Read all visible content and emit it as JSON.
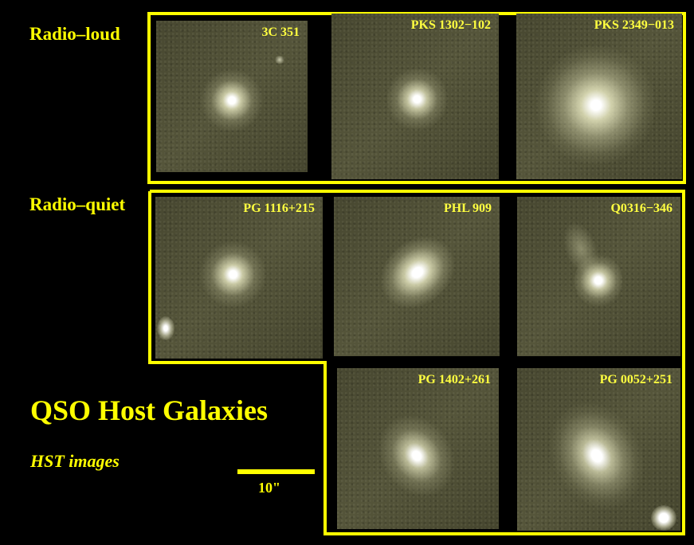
{
  "groups": {
    "radio_loud": "Radio–loud",
    "radio_quiet": "Radio–quiet"
  },
  "title": "QSO Host Galaxies",
  "subtitle": "HST images",
  "scale_bar_label": "10\"",
  "panels": [
    {
      "label": "3C 351"
    },
    {
      "label": "PKS 1302−102"
    },
    {
      "label": "PKS 2349−013"
    },
    {
      "label": "PG 1116+215"
    },
    {
      "label": "PHL 909"
    },
    {
      "label": "Q0316−346"
    },
    {
      "label": "PG 1402+261"
    },
    {
      "label": "PG 0052+251"
    }
  ],
  "colors": {
    "frame": "#ffff00",
    "background": "#000000"
  }
}
